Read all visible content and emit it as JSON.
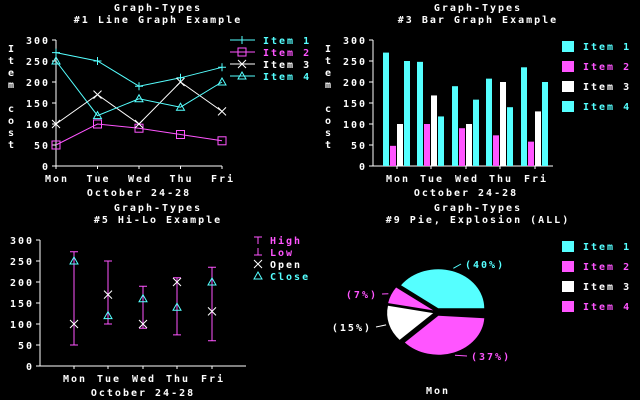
{
  "colors": {
    "cyan": "#55ffff",
    "magenta": "#ff55ff",
    "white": "#ffffff",
    "background": "#000000"
  },
  "chart_data": [
    {
      "type": "line",
      "title": "Graph-Types",
      "subtitle": "#1 Line Graph Example",
      "xlabel": "October 24-28",
      "ylabel": "Item cost",
      "categories": [
        "Mon",
        "Tue",
        "Wed",
        "Thu",
        "Fri"
      ],
      "yticks": [
        "0",
        "50",
        "100",
        "150",
        "200",
        "250",
        "300"
      ],
      "ylim": [
        0,
        300
      ],
      "legend_position": "right",
      "series": [
        {
          "name": "Item 1",
          "color": "#55ffff",
          "marker": "plus",
          "values": [
            270,
            250,
            190,
            210,
            235
          ]
        },
        {
          "name": "Item 2",
          "color": "#ff55ff",
          "marker": "square",
          "values": [
            50,
            100,
            90,
            75,
            60
          ]
        },
        {
          "name": "Item 3",
          "color": "#ffffff",
          "marker": "x",
          "values": [
            100,
            170,
            100,
            200,
            130
          ]
        },
        {
          "name": "Item 4",
          "color": "#55ffff",
          "marker": "triangle",
          "values": [
            250,
            120,
            160,
            140,
            200
          ]
        }
      ]
    },
    {
      "type": "bar",
      "title": "Graph-Types",
      "subtitle": "#3 Bar Graph Example",
      "xlabel": "October 24-28",
      "ylabel": "Item cost",
      "categories": [
        "Mon",
        "Tue",
        "Wed",
        "Thu",
        "Fri"
      ],
      "yticks": [
        "0",
        "50",
        "100",
        "150",
        "200",
        "250",
        "300"
      ],
      "ylim": [
        0,
        300
      ],
      "legend_position": "right",
      "series": [
        {
          "name": "Item 1",
          "color": "#55ffff",
          "values": [
            270,
            248,
            190,
            208,
            235
          ]
        },
        {
          "name": "Item 2",
          "color": "#ff55ff",
          "values": [
            48,
            100,
            90,
            73,
            58
          ]
        },
        {
          "name": "Item 3",
          "color": "#ffffff",
          "values": [
            100,
            168,
            100,
            200,
            130
          ]
        },
        {
          "name": "Item 4",
          "color": "#55ffff",
          "values": [
            250,
            118,
            158,
            140,
            200
          ]
        }
      ]
    },
    {
      "type": "hi-lo",
      "title": "Graph-Types",
      "subtitle": "#5 Hi-Lo Example",
      "xlabel": "October 24-28",
      "categories": [
        "Mon",
        "Tue",
        "Wed",
        "Thu",
        "Fri"
      ],
      "yticks": [
        "0",
        "50",
        "100",
        "150",
        "200",
        "250",
        "300"
      ],
      "ylim": [
        0,
        300
      ],
      "legend_position": "right",
      "legend": [
        {
          "name": "High",
          "color": "#ff55ff",
          "marker": "high-tick"
        },
        {
          "name": "Low",
          "color": "#ff55ff",
          "marker": "low-tick"
        },
        {
          "name": "Open",
          "color": "#ffffff",
          "marker": "x"
        },
        {
          "name": "Close",
          "color": "#55ffff",
          "marker": "triangle"
        }
      ],
      "high": [
        272,
        250,
        190,
        210,
        235
      ],
      "low": [
        50,
        100,
        90,
        74,
        60
      ],
      "open": [
        100,
        170,
        100,
        200,
        130
      ],
      "close": [
        250,
        120,
        160,
        140,
        200
      ]
    },
    {
      "type": "pie",
      "title": "Graph-Types",
      "subtitle": "#9 Pie, Explosion (ALL)",
      "xlabel": "Mon",
      "legend_position": "right",
      "legend": [
        {
          "name": "Item 1",
          "color": "#55ffff"
        },
        {
          "name": "Item 2",
          "color": "#ff55ff"
        },
        {
          "name": "Item 3",
          "color": "#ffffff"
        },
        {
          "name": "Item 4",
          "color": "#ff55ff"
        }
      ],
      "slices": [
        {
          "name": "Item 1",
          "percent": 40,
          "label": "(40%)",
          "color": "#55ffff"
        },
        {
          "name": "Item 2",
          "percent": 7,
          "label": "(7%)",
          "color": "#ff55ff"
        },
        {
          "name": "Item 3",
          "percent": 15,
          "label": "(15%)",
          "color": "#ffffff"
        },
        {
          "name": "Item 4",
          "percent": 37,
          "label": "(37%)",
          "color": "#ff55ff"
        }
      ]
    }
  ]
}
